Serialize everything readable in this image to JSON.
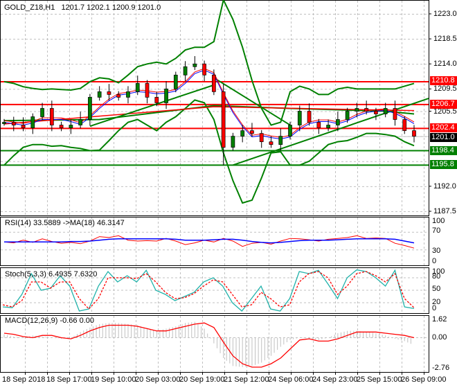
{
  "header": {
    "symbol": "GOLD_Z18,H1",
    "ohlc": "1201.7 1202.1 1200.9 1201.0"
  },
  "colors": {
    "background": "#ffffff",
    "grid": "#c0c0c0",
    "bollinger": "#008000",
    "resistance": "#ff0000",
    "support": "#008000",
    "candle_up": "#008000",
    "candle_down": "#ff0000",
    "rsi_line": "#ff0000",
    "rsi_ma": "#0000ff",
    "stoch_main": "#20b2aa",
    "stoch_signal": "#ff0000",
    "macd_hist": "#c0c0c0",
    "macd_signal": "#ff0000",
    "current_price_bg": "#000000"
  },
  "price_axis": {
    "ticks": [
      "1223.0",
      "1218.5",
      "1214.0",
      "1209.5",
      "1205.5",
      "1192.0",
      "1187.5"
    ]
  },
  "price_tags": [
    {
      "label": "1210.8",
      "type": "resistance",
      "color": "#ff0000"
    },
    {
      "label": "1206.7",
      "type": "resistance",
      "color": "#ff0000"
    },
    {
      "label": "1202.4",
      "type": "resistance",
      "color": "#ff0000"
    },
    {
      "label": "1201.0",
      "type": "current",
      "color": "#000000"
    },
    {
      "label": "1198.4",
      "type": "support",
      "color": "#008000"
    },
    {
      "label": "1195.8",
      "type": "support",
      "color": "#008000"
    }
  ],
  "rsi": {
    "title": "RSI(14) 33.5889  ->MA(18) 46.3147",
    "ticks": [
      "100",
      "70",
      "30",
      "0"
    ]
  },
  "stoch": {
    "title": "Stoch(5,3,3) 6.4935 7.6320",
    "ticks": [
      "100",
      "80",
      "50",
      "20",
      "0"
    ]
  },
  "macd": {
    "title": "MACD(12,26,9) -0.66 0.00",
    "ticks": [
      "1.62",
      "0.00",
      "-2.76"
    ]
  },
  "time_axis": {
    "labels": [
      "18 Sep 2018",
      "18 Sep 17:00",
      "19 Sep 10:00",
      "20 Sep 03:00",
      "20 Sep 19:00",
      "21 Sep 12:00",
      "24 Sep 06:00",
      "24 Sep 23:00",
      "25 Sep 15:00",
      "26 Sep 09:00"
    ]
  },
  "chart_data": [
    {
      "type": "candlestick",
      "title": "GOLD_Z18,H1",
      "last_ohlc": {
        "open": 1201.7,
        "high": 1202.1,
        "low": 1200.9,
        "close": 1201.0
      },
      "ylim": [
        1186.5,
        1225.5
      ],
      "x_labels": [
        "18 Sep 2018",
        "18 Sep 17:00",
        "19 Sep 10:00",
        "20 Sep 03:00",
        "20 Sep 19:00",
        "21 Sep 12:00",
        "24 Sep 06:00",
        "24 Sep 23:00",
        "25 Sep 15:00",
        "26 Sep 09:00"
      ],
      "y_ticks": [
        1223.0,
        1218.5,
        1214.0,
        1209.5,
        1205.5,
        1192.0,
        1187.5
      ],
      "horizontal_levels": [
        {
          "value": 1210.8,
          "color": "red",
          "role": "resistance"
        },
        {
          "value": 1206.7,
          "color": "red",
          "role": "resistance"
        },
        {
          "value": 1202.4,
          "color": "red",
          "role": "resistance"
        },
        {
          "value": 1198.4,
          "color": "green",
          "role": "support"
        },
        {
          "value": 1195.8,
          "color": "green",
          "role": "support"
        }
      ],
      "current_price": 1201.0,
      "approx_close_path": [
        1203.5,
        1203.0,
        1202.5,
        1204.5,
        1206.0,
        1203.0,
        1202.5,
        1203.0,
        1204.0,
        1208.0,
        1209.0,
        1208.5,
        1208.0,
        1209.0,
        1210.5,
        1208.0,
        1207.0,
        1209.5,
        1212.0,
        1213.5,
        1214.0,
        1212.0,
        1209.0,
        1199.0,
        1201.0,
        1202.0,
        1201.5,
        1200.0,
        1199.5,
        1201.0,
        1203.0,
        1205.5,
        1203.5,
        1202.5,
        1203.0,
        1204.0,
        1205.5,
        1206.0,
        1205.5,
        1205.0,
        1206.0,
        1204.0,
        1202.0,
        1201.0
      ]
    },
    {
      "type": "line",
      "title": "RSI(14) 33.5889 ->MA(18) 46.3147",
      "ylim": [
        0,
        100
      ],
      "y_ticks": [
        100,
        70,
        30,
        0
      ],
      "series": [
        {
          "name": "RSI(14)",
          "last": 33.5889,
          "values": [
            48,
            46,
            52,
            47,
            55,
            49,
            45,
            47,
            44,
            50,
            60,
            58,
            62,
            52,
            50,
            51,
            50,
            56,
            50,
            42,
            46,
            52,
            48,
            56,
            50,
            38,
            45,
            47,
            43,
            50,
            56,
            55,
            53,
            50,
            54,
            56,
            58,
            62,
            56,
            57,
            56,
            45,
            40,
            34
          ]
        },
        {
          "name": "MA(18)",
          "last": 46.3147,
          "values": [
            48,
            48,
            48,
            48,
            48,
            48,
            48,
            49,
            49,
            50,
            52,
            54,
            55,
            55,
            55,
            55,
            55,
            55,
            54,
            52,
            52,
            52,
            53,
            54,
            54,
            52,
            49,
            47,
            46,
            47,
            49,
            51,
            52,
            52,
            52,
            53,
            54,
            55,
            55,
            55,
            55,
            54,
            50,
            46
          ]
        }
      ]
    },
    {
      "type": "line",
      "title": "Stoch(5,3,3) 6.4935 7.6320",
      "ylim": [
        0,
        100
      ],
      "y_ticks": [
        100,
        80,
        50,
        20,
        0
      ],
      "series": [
        {
          "name": "%K",
          "last": 6.4935,
          "values": [
            10,
            8,
            40,
            90,
            50,
            55,
            85,
            60,
            0,
            5,
            60,
            95,
            70,
            85,
            70,
            98,
            50,
            40,
            25,
            35,
            45,
            70,
            80,
            60,
            20,
            0,
            30,
            60,
            5,
            0,
            30,
            95,
            90,
            98,
            65,
            30,
            80,
            99,
            95,
            80,
            60,
            98,
            10,
            6
          ]
        },
        {
          "name": "%D",
          "last": 7.632,
          "values": [
            15,
            10,
            25,
            70,
            70,
            55,
            70,
            70,
            30,
            5,
            30,
            80,
            80,
            80,
            78,
            90,
            70,
            45,
            30,
            32,
            42,
            60,
            75,
            70,
            40,
            10,
            15,
            45,
            30,
            10,
            15,
            70,
            90,
            95,
            80,
            40,
            60,
            90,
            95,
            85,
            70,
            90,
            30,
            8
          ]
        }
      ]
    },
    {
      "type": "line",
      "title": "MACD(12,26,9) -0.66 0.00",
      "ylim": [
        -2.76,
        1.62
      ],
      "y_ticks": [
        1.62,
        0.0,
        -2.76
      ],
      "series": [
        {
          "name": "MACD histogram",
          "last": -0.66,
          "values": [
            0.3,
            0.1,
            0.0,
            0.2,
            0.1,
            0.0,
            -0.1,
            0.0,
            0.5,
            0.9,
            1.2,
            1.3,
            1.3,
            1.2,
            1.1,
            0.8,
            0.6,
            0.8,
            1.0,
            1.3,
            1.4,
            0.8,
            -0.5,
            -1.8,
            -2.5,
            -2.6,
            -2.5,
            -2.2,
            -1.6,
            -0.8,
            -0.2,
            0.0,
            -0.1,
            -0.2,
            0.0,
            0.4,
            0.6,
            0.6,
            0.5,
            0.4,
            0.2,
            -0.1,
            -0.3,
            -0.66
          ]
        },
        {
          "name": "Signal",
          "last": 0.0,
          "values": [
            0.4,
            0.3,
            0.1,
            0.0,
            0.2,
            0.2,
            0.0,
            -0.1,
            0.2,
            0.6,
            0.9,
            1.1,
            1.1,
            1.1,
            1.0,
            0.8,
            0.6,
            0.6,
            0.8,
            1.0,
            1.2,
            1.3,
            0.9,
            -0.4,
            -1.6,
            -2.3,
            -2.6,
            -2.6,
            -2.3,
            -1.8,
            -1.0,
            -0.2,
            -0.1,
            -0.3,
            -0.3,
            -0.1,
            0.2,
            0.5,
            0.5,
            0.5,
            0.4,
            0.3,
            0.2,
            0.0
          ]
        }
      ]
    }
  ]
}
